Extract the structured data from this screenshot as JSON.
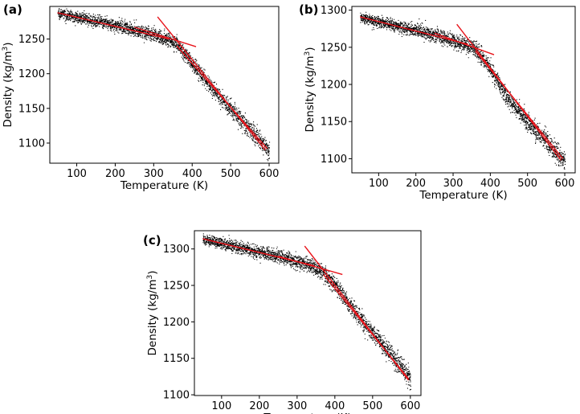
{
  "chart_data": [
    {
      "panel_label": "(a)",
      "type": "scatter",
      "xlabel": "Temperature (K)",
      "ylabel": "Density (kg/m³)",
      "ylabel_main": "Density (kg/m",
      "ylabel_sup": "3",
      "ylabel_end": ")",
      "xlim": [
        30,
        625
      ],
      "ylim": [
        1071,
        1297
      ],
      "xticks": [
        100,
        200,
        300,
        400,
        500,
        600
      ],
      "yticks": [
        1100,
        1150,
        1200,
        1250
      ],
      "grid": false,
      "scatter_color": "#000000",
      "line_color": "#e8141b",
      "curve": [
        [
          50,
          1288
        ],
        [
          250,
          1264
        ],
        [
          330,
          1251
        ],
        [
          360,
          1244
        ],
        [
          390,
          1222
        ],
        [
          450,
          1180
        ],
        [
          500,
          1150
        ],
        [
          550,
          1120
        ],
        [
          600,
          1088
        ]
      ],
      "noise_sd": 3.5,
      "low_fit_line": [
        [
          250,
          1267
        ],
        [
          410,
          1239
        ]
      ],
      "high_fit_line": [
        [
          310,
          1282
        ],
        [
          590,
          1090
        ]
      ],
      "red_fit_segments": [
        [
          [
            50,
            1288
          ],
          [
            340,
            1250
          ]
        ],
        [
          [
            360,
            1240
          ],
          [
            595,
            1092
          ]
        ]
      ]
    },
    {
      "panel_label": "(b)",
      "type": "scatter",
      "xlabel": "Temperature (K)",
      "ylabel": "Density (kg/m³)",
      "ylabel_main": "Density (kg/m",
      "ylabel_sup": "3",
      "ylabel_end": ")",
      "xlim": [
        28,
        628
      ],
      "ylim": [
        1081,
        1305
      ],
      "xticks": [
        100,
        200,
        300,
        400,
        500,
        600
      ],
      "yticks": [
        1100,
        1150,
        1200,
        1250,
        1300
      ],
      "grid": false,
      "scatter_color": "#000000",
      "line_color": "#e8141b",
      "curve": [
        [
          50,
          1291
        ],
        [
          250,
          1267
        ],
        [
          330,
          1254
        ],
        [
          360,
          1248
        ],
        [
          390,
          1228
        ],
        [
          450,
          1180
        ],
        [
          500,
          1150
        ],
        [
          550,
          1125
        ],
        [
          600,
          1095
        ]
      ],
      "noise_sd": 3.5,
      "low_fit_line": [
        [
          250,
          1269
        ],
        [
          410,
          1240
        ]
      ],
      "high_fit_line": [
        [
          310,
          1281
        ],
        [
          590,
          1098
        ]
      ],
      "red_fit_segments": [
        [
          [
            50,
            1291
          ],
          [
            340,
            1254
          ]
        ],
        [
          [
            360,
            1245
          ],
          [
            595,
            1100
          ]
        ]
      ]
    },
    {
      "panel_label": "(c)",
      "type": "scatter",
      "xlabel": "Temperature (K)",
      "ylabel": "Density (kg/m³)",
      "ylabel_main": "Density (kg/m",
      "ylabel_sup": "3",
      "ylabel_end": ")",
      "xlim": [
        28,
        628
      ],
      "ylim": [
        1099,
        1325
      ],
      "xticks": [
        100,
        200,
        300,
        400,
        500,
        600
      ],
      "yticks": [
        1100,
        1150,
        1200,
        1250,
        1300
      ],
      "grid": false,
      "scatter_color": "#000000",
      "line_color": "#e8141b",
      "curve": [
        [
          50,
          1314
        ],
        [
          250,
          1290
        ],
        [
          330,
          1278
        ],
        [
          365,
          1270
        ],
        [
          400,
          1250
        ],
        [
          450,
          1215
        ],
        [
          500,
          1185
        ],
        [
          550,
          1155
        ],
        [
          600,
          1120
        ]
      ],
      "noise_sd": 3.5,
      "low_fit_line": [
        [
          250,
          1290
        ],
        [
          420,
          1265
        ]
      ],
      "high_fit_line": [
        [
          320,
          1304
        ],
        [
          595,
          1120
        ]
      ],
      "red_fit_segments": [
        [
          [
            50,
            1314
          ],
          [
            345,
            1277
          ]
        ],
        [
          [
            370,
            1265
          ],
          [
            595,
            1122
          ]
        ]
      ]
    }
  ]
}
